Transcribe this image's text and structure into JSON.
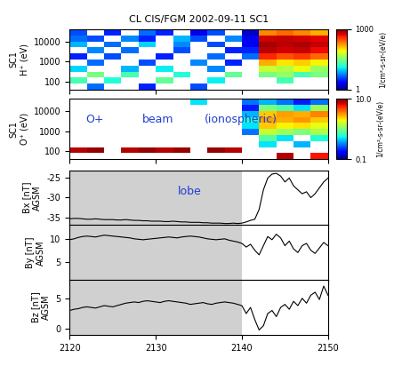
{
  "chart_data": [
    {
      "type": "heatmap",
      "title": "CL CIS/FGM 2002-09-11 SC1",
      "ylabel": "SC1\nH⁺ (eV)",
      "log": "y",
      "tick_labels": "y",
      "xlim": [
        2120,
        2150
      ],
      "xticks": [
        2120,
        2130,
        2140,
        2150
      ],
      "ylim": [
        40,
        40960
      ],
      "yticks": [
        100,
        1000,
        10000
      ],
      "x_bins": [
        2120,
        2122,
        2124,
        2126,
        2128,
        2130,
        2132,
        2134,
        2136,
        2138,
        2140,
        2142,
        2144,
        2146,
        2148,
        2150
      ],
      "y_bins": [
        40,
        80,
        160,
        320,
        640,
        1280,
        2560,
        5120,
        10240,
        20480,
        40960
      ],
      "cells": [
        [
          null,
          5,
          null,
          null,
          3,
          null,
          null,
          4,
          null,
          null,
          null,
          null,
          null,
          null,
          null
        ],
        [
          20,
          null,
          15,
          null,
          null,
          25,
          null,
          null,
          12,
          null,
          null,
          null,
          20,
          null,
          null
        ],
        [
          null,
          30,
          null,
          20,
          null,
          null,
          15,
          null,
          null,
          25,
          null,
          30,
          40,
          20,
          30
        ],
        [
          10,
          null,
          null,
          8,
          null,
          12,
          null,
          null,
          6,
          null,
          null,
          60,
          50,
          80,
          40
        ],
        [
          null,
          5,
          null,
          null,
          4,
          null,
          null,
          6,
          null,
          3,
          null,
          150,
          100,
          120,
          90
        ],
        [
          3,
          null,
          4,
          null,
          null,
          3,
          null,
          null,
          5,
          null,
          5,
          400,
          300,
          350,
          250
        ],
        [
          null,
          6,
          null,
          5,
          null,
          null,
          4,
          null,
          null,
          3,
          3,
          700,
          600,
          650,
          500
        ],
        [
          8,
          null,
          5,
          null,
          10,
          null,
          6,
          null,
          4,
          null,
          2,
          800,
          700,
          750,
          650
        ],
        [
          5,
          4,
          null,
          6,
          3,
          null,
          8,
          4,
          null,
          6,
          2,
          600,
          650,
          600,
          550
        ],
        [
          4,
          null,
          3,
          null,
          5,
          3,
          null,
          2,
          4,
          null,
          1.5,
          200,
          250,
          200,
          150
        ]
      ],
      "colorbar_label": "1/cm²-s-sr-(eV/e)",
      "colorbar_lim": [
        1,
        1000
      ],
      "colorbar_ticks": [
        1,
        1000
      ]
    },
    {
      "type": "heatmap",
      "ylabel": "SC1\nO⁺ (eV)",
      "log": "y",
      "tick_labels": "y",
      "xlim": [
        2120,
        2150
      ],
      "xticks": [
        2120,
        2130,
        2140,
        2150
      ],
      "ylim": [
        40,
        40960
      ],
      "yticks": [
        100,
        1000,
        10000
      ],
      "x_bins": [
        2120,
        2122,
        2124,
        2126,
        2128,
        2130,
        2132,
        2134,
        2136,
        2138,
        2140,
        2142,
        2144,
        2146,
        2148,
        2150
      ],
      "y_bins": [
        40,
        80,
        160,
        320,
        640,
        1280,
        2560,
        5120,
        10240,
        20480,
        40960
      ],
      "cells": [
        [
          null,
          null,
          null,
          null,
          null,
          null,
          null,
          null,
          null,
          null,
          null,
          null,
          8,
          null,
          6
        ],
        [
          8,
          9,
          null,
          8,
          9,
          8,
          9,
          null,
          9,
          8,
          null,
          null,
          null,
          null,
          null
        ],
        [
          null,
          null,
          null,
          null,
          null,
          null,
          null,
          null,
          null,
          null,
          null,
          0.5,
          null,
          0.4,
          null
        ],
        [
          null,
          null,
          null,
          null,
          null,
          null,
          null,
          null,
          null,
          null,
          null,
          0.8,
          0.5,
          null,
          0.6
        ],
        [
          null,
          null,
          null,
          null,
          null,
          null,
          null,
          null,
          null,
          null,
          0.3,
          1.5,
          1.2,
          1.0,
          1.3
        ],
        [
          null,
          null,
          null,
          null,
          null,
          null,
          null,
          null,
          null,
          null,
          0.5,
          2.5,
          2.0,
          2.2,
          1.8
        ],
        [
          null,
          null,
          null,
          null,
          null,
          null,
          null,
          null,
          null,
          null,
          0.6,
          3.0,
          2.8,
          3.2,
          2.5
        ],
        [
          null,
          null,
          null,
          null,
          null,
          null,
          null,
          null,
          null,
          null,
          0.4,
          2.5,
          3.0,
          2.8,
          3.5
        ],
        [
          null,
          null,
          null,
          null,
          null,
          null,
          null,
          null,
          null,
          null,
          0.2,
          1.0,
          0.8,
          0.5,
          1.2
        ],
        [
          null,
          null,
          null,
          null,
          null,
          null,
          null,
          0.5,
          null,
          null,
          0.3,
          0.4,
          0.3,
          0.2,
          0.3
        ]
      ],
      "colorbar_label": "1/cm²-s-sr-(eV/e)",
      "colorbar_lim": [
        0.1,
        10
      ],
      "colorbar_ticks": [
        0.1,
        {
          "value": 10,
          "label": "10.0"
        }
      ],
      "annotations": [
        "O+",
        "beam",
        "(ionospheric)"
      ]
    },
    {
      "type": "line",
      "ylabel": "Bx [nT]\nAGSM",
      "tick_labels": "y",
      "color": "#000000",
      "xlim": [
        2120,
        2150
      ],
      "xticks": [
        2120,
        2130,
        2140,
        2150
      ],
      "ylim": [
        -37,
        -23
      ],
      "yticks": [
        -35,
        -30,
        -25
      ],
      "shaded": {
        "x": [
          2120,
          2140
        ]
      },
      "annotations": [
        "lobe"
      ],
      "x": [
        2120,
        2120.5,
        2121,
        2121.5,
        2122,
        2122.5,
        2123,
        2123.5,
        2124,
        2124.5,
        2125,
        2125.5,
        2126,
        2126.5,
        2127,
        2127.5,
        2128,
        2128.5,
        2129,
        2129.5,
        2130,
        2130.5,
        2131,
        2131.5,
        2132,
        2132.5,
        2133,
        2133.5,
        2134,
        2134.5,
        2135,
        2135.5,
        2136,
        2136.5,
        2137,
        2137.5,
        2138,
        2138.5,
        2139,
        2139.5,
        2140,
        2140.5,
        2141,
        2141.5,
        2142,
        2142.5,
        2143,
        2143.5,
        2144,
        2144.5,
        2145,
        2145.5,
        2146,
        2146.5,
        2147,
        2147.5,
        2148,
        2148.5,
        2149,
        2149.5,
        2150
      ],
      "values": [
        -35.4,
        -35.3,
        -35.3,
        -35.4,
        -35.5,
        -35.5,
        -35.4,
        -35.5,
        -35.6,
        -35.6,
        -35.6,
        -35.7,
        -35.7,
        -35.6,
        -35.7,
        -35.8,
        -35.8,
        -35.9,
        -35.9,
        -36.0,
        -36.0,
        -36.0,
        -36.1,
        -36.1,
        -36.0,
        -36.1,
        -36.2,
        -36.2,
        -36.3,
        -36.3,
        -36.3,
        -36.4,
        -36.4,
        -36.5,
        -36.5,
        -36.5,
        -36.6,
        -36.6,
        -36.5,
        -36.6,
        -36.5,
        -36.2,
        -35.8,
        -35.5,
        -33,
        -28,
        -25,
        -24,
        -23.8,
        -24.5,
        -26,
        -25,
        -27,
        -28,
        -29,
        -28.5,
        -30,
        -29,
        -27.5,
        -26,
        -25
      ]
    },
    {
      "type": "line",
      "ylabel": "By [nT]\nAGSM",
      "tick_labels": "y",
      "color": "#000000",
      "xlim": [
        2120,
        2150
      ],
      "xticks": [
        2120,
        2130,
        2140,
        2150
      ],
      "ylim": [
        1,
        13
      ],
      "yticks": [
        5,
        10
      ],
      "shaded": {
        "x": [
          2120,
          2140
        ]
      },
      "x": [
        2120,
        2120.5,
        2121,
        2121.5,
        2122,
        2122.5,
        2123,
        2123.5,
        2124,
        2124.5,
        2125,
        2125.5,
        2126,
        2126.5,
        2127,
        2127.5,
        2128,
        2128.5,
        2129,
        2129.5,
        2130,
        2130.5,
        2131,
        2131.5,
        2132,
        2132.5,
        2133,
        2133.5,
        2134,
        2134.5,
        2135,
        2135.5,
        2136,
        2136.5,
        2137,
        2137.5,
        2138,
        2138.5,
        2139,
        2139.5,
        2140,
        2140.5,
        2141,
        2141.5,
        2142,
        2142.5,
        2143,
        2143.5,
        2144,
        2144.5,
        2145,
        2145.5,
        2146,
        2146.5,
        2147,
        2147.5,
        2148,
        2148.5,
        2149,
        2149.5,
        2150
      ],
      "values": [
        9.8,
        10.0,
        10.3,
        10.5,
        10.6,
        10.5,
        10.4,
        10.6,
        10.8,
        10.7,
        10.6,
        10.5,
        10.4,
        10.3,
        10.2,
        10.0,
        9.9,
        9.8,
        9.9,
        10.0,
        10.1,
        10.2,
        10.3,
        10.4,
        10.3,
        10.2,
        10.4,
        10.5,
        10.6,
        10.5,
        10.4,
        10.2,
        10.0,
        9.9,
        9.8,
        9.9,
        10.0,
        9.7,
        9.5,
        9.3,
        9.0,
        8.2,
        8.8,
        7.5,
        6.5,
        8.5,
        10.5,
        9.8,
        11.0,
        10.2,
        8.5,
        9.5,
        7.8,
        7.0,
        8.5,
        9.0,
        7.5,
        6.8,
        8.0,
        9.2,
        8.5
      ]
    },
    {
      "type": "line",
      "ylabel": "Bz [nT]\nAGSM",
      "color": "#000000",
      "xlim": [
        2120,
        2150
      ],
      "xticks": [
        2120,
        2130,
        2140,
        2150
      ],
      "ylim": [
        -1,
        8
      ],
      "yticks": [
        0,
        5
      ],
      "shaded": {
        "x": [
          2120,
          2140
        ]
      },
      "x": [
        2120,
        2120.5,
        2121,
        2121.5,
        2122,
        2122.5,
        2123,
        2123.5,
        2124,
        2124.5,
        2125,
        2125.5,
        2126,
        2126.5,
        2127,
        2127.5,
        2128,
        2128.5,
        2129,
        2129.5,
        2130,
        2130.5,
        2131,
        2131.5,
        2132,
        2132.5,
        2133,
        2133.5,
        2134,
        2134.5,
        2135,
        2135.5,
        2136,
        2136.5,
        2137,
        2137.5,
        2138,
        2138.5,
        2139,
        2139.5,
        2140,
        2140.5,
        2141,
        2141.5,
        2142,
        2142.5,
        2143,
        2143.5,
        2144,
        2144.5,
        2145,
        2145.5,
        2146,
        2146.5,
        2147,
        2147.5,
        2148,
        2148.5,
        2149,
        2149.5,
        2150
      ],
      "values": [
        3.0,
        3.2,
        3.3,
        3.5,
        3.6,
        3.5,
        3.4,
        3.6,
        3.8,
        3.7,
        3.6,
        3.8,
        4.0,
        4.2,
        4.3,
        4.4,
        4.3,
        4.5,
        4.6,
        4.5,
        4.4,
        4.3,
        4.5,
        4.6,
        4.5,
        4.4,
        4.3,
        4.2,
        4.0,
        4.1,
        4.2,
        4.3,
        4.1,
        4.0,
        4.2,
        4.3,
        4.4,
        4.3,
        4.2,
        4.0,
        3.8,
        2.5,
        3.5,
        1.5,
        -0.2,
        0.5,
        2.5,
        3.0,
        2.0,
        3.5,
        4.0,
        3.2,
        4.5,
        3.8,
        5.0,
        4.2,
        5.5,
        6.0,
        4.8,
        7.0,
        5.5
      ]
    }
  ]
}
